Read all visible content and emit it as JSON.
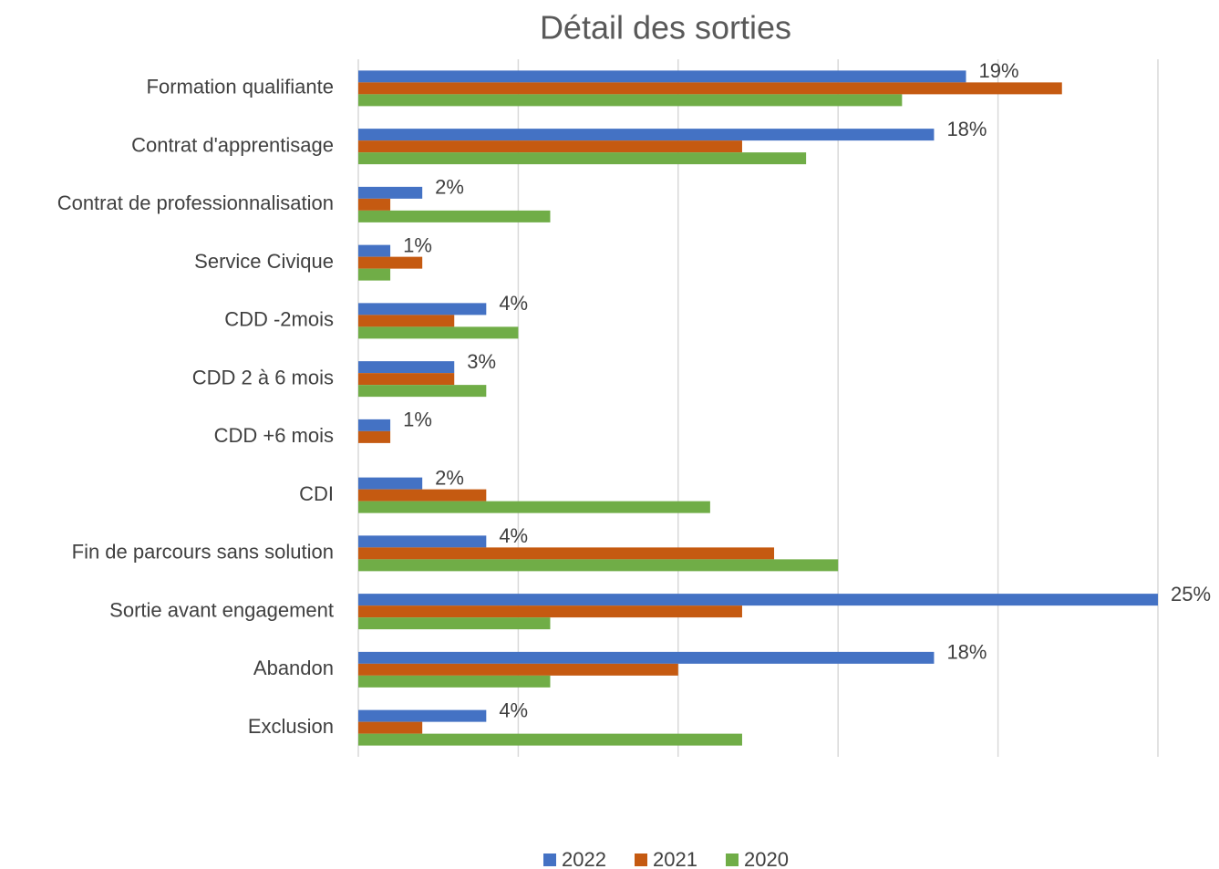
{
  "chart_data": {
    "type": "hbar",
    "title": "Détail des sorties",
    "categories": [
      "Formation qualifiante",
      "Contrat d'apprentisage",
      "Contrat de professionnalisation",
      "Service Civique",
      "CDD -2mois",
      "CDD 2 à 6 mois",
      "CDD +6 mois",
      "CDI",
      "Fin de parcours sans solution",
      "Sortie avant engagement",
      "Abandon",
      "Exclusion"
    ],
    "series": [
      {
        "name": "2022",
        "color": "#4472c4",
        "values": [
          19,
          18,
          2,
          1,
          4,
          3,
          1,
          2,
          4,
          25,
          18,
          4
        ],
        "value_labels": [
          "19%",
          "18%",
          "2%",
          "1%",
          "4%",
          "3%",
          "1%",
          "2%",
          "4%",
          "25%",
          "18%",
          "4%"
        ]
      },
      {
        "name": "2021",
        "color": "#c55a11",
        "values": [
          22,
          12,
          1,
          2,
          3,
          3,
          1,
          4,
          13,
          12,
          10,
          2
        ]
      },
      {
        "name": "2020",
        "color": "#70ad47",
        "values": [
          17,
          14,
          6,
          1,
          5,
          4,
          null,
          11,
          15,
          6,
          6,
          12
        ]
      }
    ],
    "xlim": [
      0,
      25
    ],
    "xticks": [
      0,
      5,
      10,
      15,
      20,
      25
    ],
    "grid": true,
    "legend": "bottom"
  }
}
